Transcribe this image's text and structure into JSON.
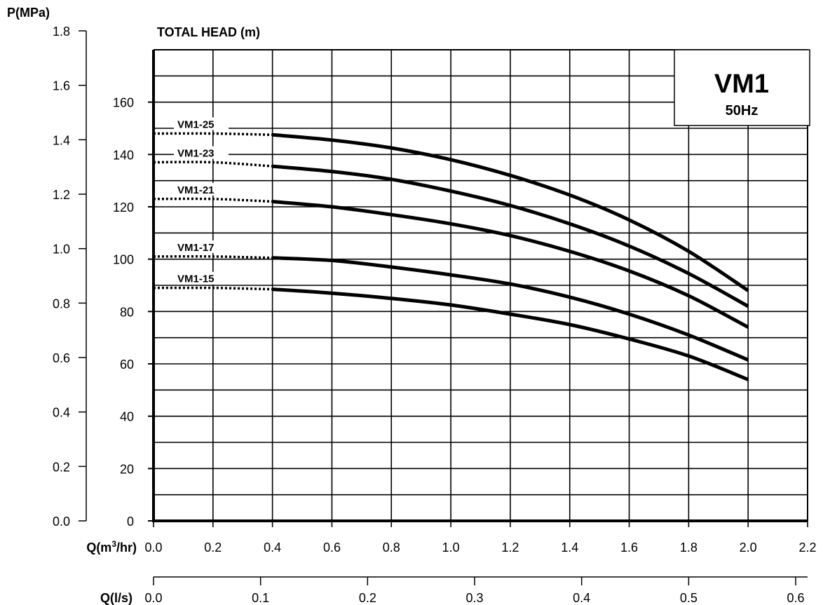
{
  "chart_data": {
    "type": "line",
    "title": "VM1",
    "subtitle": "50Hz",
    "ylabel": "TOTAL HEAD (m)",
    "ylabel_secondary": "P(MPa)",
    "xlabel": "Q(m³/hr)",
    "xlabel_secondary": "Q(l/s)",
    "xlim": [
      0.0,
      2.2
    ],
    "ylim": [
      0,
      180
    ],
    "x_ticks": [
      "0.0",
      "0.2",
      "0.4",
      "0.6",
      "0.8",
      "1.0",
      "1.2",
      "1.4",
      "1.6",
      "1.8",
      "2.0",
      "2.2"
    ],
    "y_ticks": [
      "0",
      "20",
      "40",
      "60",
      "80",
      "100",
      "120",
      "140",
      "160"
    ],
    "pressure_ticks": [
      "0.0",
      "0.2",
      "0.4",
      "0.6",
      "0.8",
      "1.0",
      "1.2",
      "1.4",
      "1.6",
      "1.8"
    ],
    "flow_ls_ticks": [
      "0.0",
      "0.1",
      "0.2",
      "0.3",
      "0.4",
      "0.5",
      "0.6"
    ],
    "grid": true,
    "series": [
      {
        "name": "VM1-25",
        "dashed_x": [
          0.0,
          0.2,
          0.4
        ],
        "dashed_y": [
          148,
          148,
          147.5
        ],
        "x": [
          0.4,
          0.6,
          0.8,
          1.0,
          1.2,
          1.4,
          1.6,
          1.8,
          2.0
        ],
        "y": [
          147.5,
          145.5,
          142.5,
          138,
          132,
          124.5,
          115,
          103,
          88
        ]
      },
      {
        "name": "VM1-23",
        "dashed_x": [
          0.0,
          0.2,
          0.4
        ],
        "dashed_y": [
          137,
          137,
          135.5
        ],
        "x": [
          0.4,
          0.6,
          0.8,
          1.0,
          1.2,
          1.4,
          1.6,
          1.8,
          2.0
        ],
        "y": [
          135.5,
          133.5,
          130.5,
          126,
          120.5,
          113.5,
          105,
          94.5,
          82
        ]
      },
      {
        "name": "VM1-21",
        "dashed_x": [
          0.0,
          0.2,
          0.4
        ],
        "dashed_y": [
          123,
          123,
          122
        ],
        "x": [
          0.4,
          0.6,
          0.8,
          1.0,
          1.2,
          1.4,
          1.6,
          1.8,
          2.0
        ],
        "y": [
          122,
          120,
          117,
          113.5,
          109,
          103,
          95.5,
          86,
          74
        ]
      },
      {
        "name": "VM1-17",
        "dashed_x": [
          0.0,
          0.2,
          0.4
        ],
        "dashed_y": [
          101,
          101,
          100.5
        ],
        "x": [
          0.4,
          0.6,
          0.8,
          1.0,
          1.2,
          1.4,
          1.6,
          1.8,
          2.0
        ],
        "y": [
          100.5,
          99.5,
          97,
          94,
          90.5,
          85.5,
          79,
          71,
          61.5
        ]
      },
      {
        "name": "VM1-15",
        "dashed_x": [
          0.0,
          0.2,
          0.4
        ],
        "dashed_y": [
          89,
          89,
          88.5
        ],
        "x": [
          0.4,
          0.6,
          0.8,
          1.0,
          1.2,
          1.4,
          1.6,
          1.8,
          2.0
        ],
        "y": [
          88.5,
          87,
          85,
          82.5,
          79,
          75,
          69.5,
          63,
          54
        ]
      }
    ]
  }
}
